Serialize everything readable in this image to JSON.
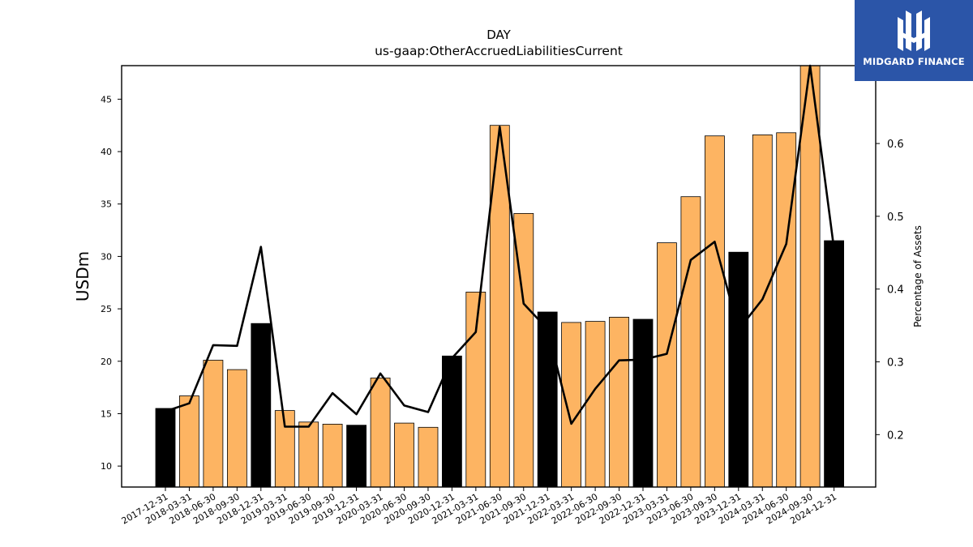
{
  "logo": {
    "text": "MIDGARD FINANCE"
  },
  "colors": {
    "bar_quarter": "#fdb462",
    "bar_year_end": "#000000",
    "line": "#000000",
    "brand": "#2b55a8"
  },
  "chart_data": {
    "type": "bar",
    "title": "DAY",
    "subtitle": "us-gaap:OtherAccruedLiabilitiesCurrent",
    "xlabel": "",
    "ylabel": "USDm",
    "y2label": "Percentage of Assets",
    "categories": [
      "2017-12-31",
      "2018-03-31",
      "2018-06-30",
      "2018-09-30",
      "2018-12-31",
      "2019-03-31",
      "2019-06-30",
      "2019-09-30",
      "2019-12-31",
      "2020-03-31",
      "2020-06-30",
      "2020-09-30",
      "2020-12-31",
      "2021-03-31",
      "2021-06-30",
      "2021-09-30",
      "2021-12-31",
      "2022-03-31",
      "2022-06-30",
      "2022-09-30",
      "2022-12-31",
      "2023-03-31",
      "2023-06-30",
      "2023-09-30",
      "2023-12-31",
      "2024-03-31",
      "2024-06-30",
      "2024-09-30",
      "2024-12-31"
    ],
    "series": [
      {
        "type": "bar",
        "values": [
          15.5,
          16.7,
          20.1,
          19.2,
          23.6,
          15.3,
          14.2,
          14.0,
          13.9,
          18.4,
          14.1,
          13.7,
          20.5,
          26.6,
          42.5,
          34.1,
          24.7,
          23.7,
          23.8,
          24.2,
          24.0,
          31.3,
          35.7,
          41.5,
          30.4,
          41.6,
          41.8,
          48.5,
          31.5
        ],
        "year_end": [
          true,
          false,
          false,
          false,
          true,
          false,
          false,
          false,
          true,
          false,
          false,
          false,
          true,
          false,
          false,
          false,
          true,
          false,
          false,
          false,
          true,
          false,
          false,
          false,
          true,
          false,
          false,
          false,
          true
        ]
      },
      {
        "type": "line",
        "axis": "right",
        "values": [
          0.232,
          0.243,
          0.323,
          0.322,
          0.458,
          0.211,
          0.211,
          0.257,
          0.228,
          0.284,
          0.24,
          0.231,
          0.305,
          0.341,
          0.623,
          0.38,
          0.345,
          0.215,
          0.263,
          0.302,
          0.303,
          0.311,
          0.44,
          0.465,
          0.344,
          0.386,
          0.462,
          0.73,
          0.455
        ]
      }
    ],
    "ylim": [
      8,
      48.2
    ],
    "yticks": [
      10,
      15,
      20,
      25,
      30,
      35,
      40,
      45
    ],
    "y2lim": [
      0.128,
      0.707
    ],
    "y2ticks": [
      0.2,
      0.3,
      0.4,
      0.5,
      0.6
    ],
    "grid": false
  }
}
